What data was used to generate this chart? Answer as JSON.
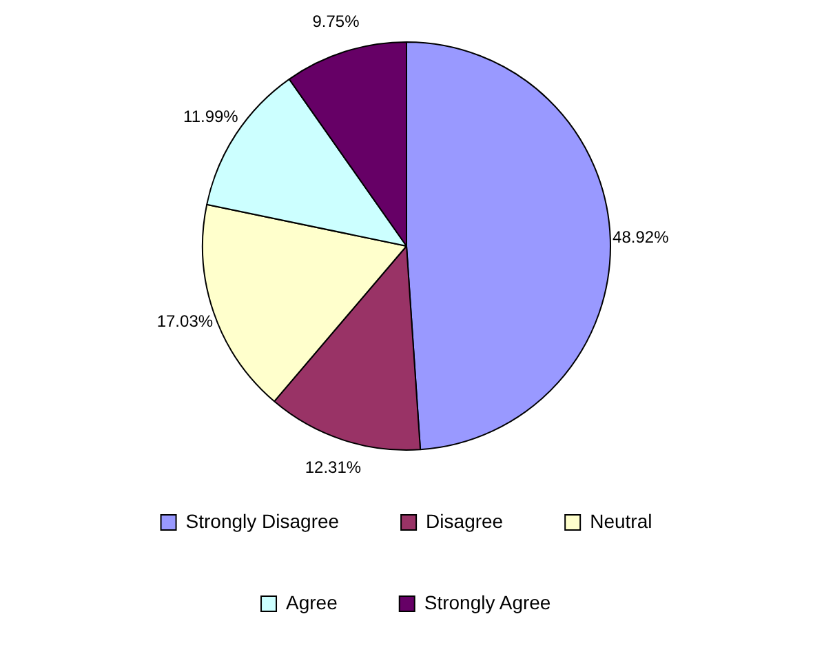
{
  "chart_data": {
    "type": "pie",
    "categories": [
      "Strongly Disagree",
      "Disagree",
      "Neutral",
      "Agree",
      "Strongly Agree"
    ],
    "values": [
      48.92,
      12.31,
      17.03,
      11.99,
      9.75
    ],
    "colors": [
      "#9999ff",
      "#993366",
      "#ffffcc",
      "#ccffff",
      "#660066"
    ],
    "value_labels": [
      "48.92%",
      "12.31%",
      "17.03%",
      "11.99%",
      "9.75%"
    ],
    "legend": "bottom"
  }
}
